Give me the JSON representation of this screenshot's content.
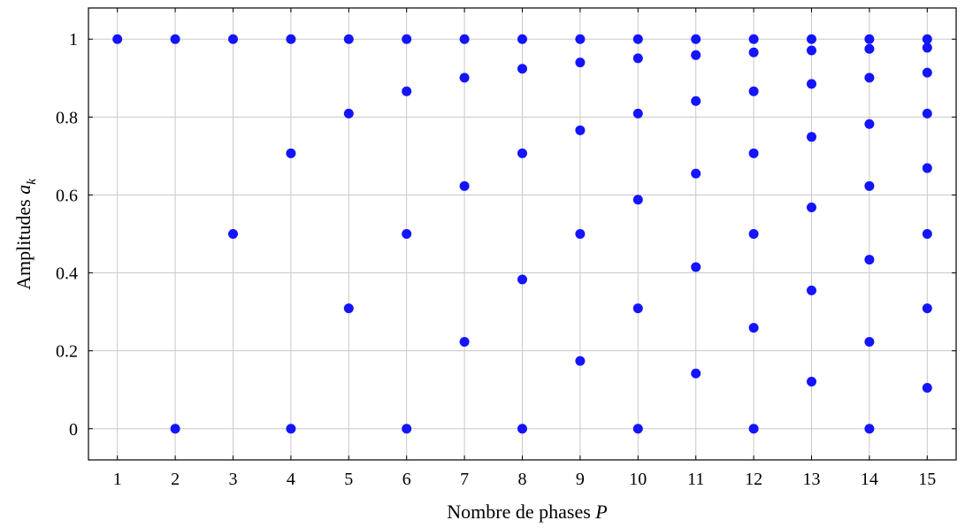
{
  "chart_data": {
    "type": "scatter",
    "xlabel": "Nombre de phases",
    "xlabel_var": "P",
    "ylabel": "Amplitudes",
    "ylabel_var": "a",
    "ylabel_sub": "k",
    "xlim": [
      0.5,
      15.5
    ],
    "ylim": [
      -0.08,
      1.08
    ],
    "xticks": [
      1,
      2,
      3,
      4,
      5,
      6,
      7,
      8,
      9,
      10,
      11,
      12,
      13,
      14,
      15
    ],
    "xtick_labels": [
      "1",
      "2",
      "3",
      "4",
      "5",
      "6",
      "7",
      "8",
      "9",
      "10",
      "11",
      "12",
      "13",
      "14",
      "15"
    ],
    "yticks": [
      0,
      0.2,
      0.4,
      0.6,
      0.8,
      1
    ],
    "ytick_labels": [
      "0",
      "0.2",
      "0.4",
      "0.6",
      "0.8",
      "1"
    ],
    "grid": true,
    "marker_color": "#1414ff",
    "series": [
      {
        "x": 1,
        "values": [
          1
        ]
      },
      {
        "x": 2,
        "values": [
          1,
          0
        ]
      },
      {
        "x": 3,
        "values": [
          1,
          0.5
        ]
      },
      {
        "x": 4,
        "values": [
          1,
          0.707,
          0
        ]
      },
      {
        "x": 5,
        "values": [
          1,
          0.809,
          0.309
        ]
      },
      {
        "x": 6,
        "values": [
          1,
          0.866,
          0.5,
          0
        ]
      },
      {
        "x": 7,
        "values": [
          1,
          0.901,
          0.623,
          0.223
        ]
      },
      {
        "x": 8,
        "values": [
          1,
          0.924,
          0.707,
          0.383,
          0
        ]
      },
      {
        "x": 9,
        "values": [
          1,
          0.94,
          0.766,
          0.5,
          0.174
        ]
      },
      {
        "x": 10,
        "values": [
          1,
          0.951,
          0.809,
          0.588,
          0.309,
          0
        ]
      },
      {
        "x": 11,
        "values": [
          1,
          0.959,
          0.841,
          0.655,
          0.415,
          0.142
        ]
      },
      {
        "x": 12,
        "values": [
          1,
          0.966,
          0.866,
          0.707,
          0.5,
          0.259,
          0
        ]
      },
      {
        "x": 13,
        "values": [
          1,
          0.971,
          0.885,
          0.749,
          0.568,
          0.355,
          0.121
        ]
      },
      {
        "x": 14,
        "values": [
          1,
          0.975,
          0.901,
          0.782,
          0.623,
          0.434,
          0.223,
          0
        ]
      },
      {
        "x": 15,
        "values": [
          1,
          0.978,
          0.914,
          0.809,
          0.669,
          0.5,
          0.309,
          0.105
        ]
      }
    ]
  }
}
